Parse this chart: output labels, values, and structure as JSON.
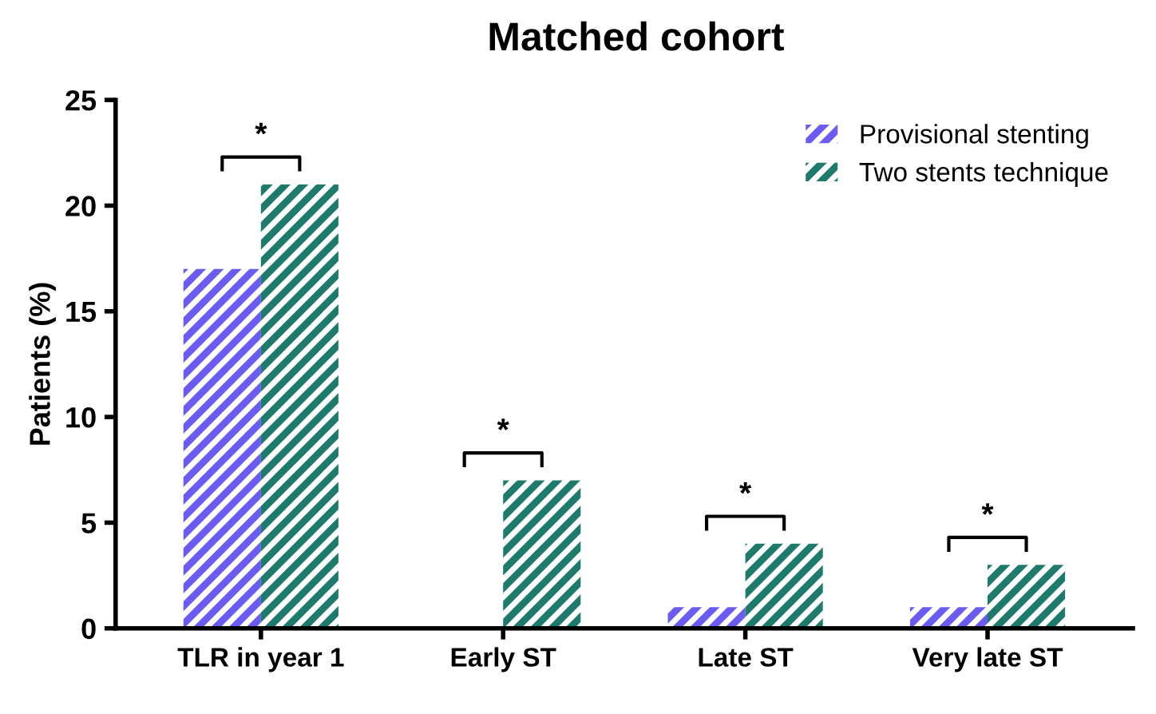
{
  "chart_data": {
    "type": "bar",
    "title": "Matched cohort",
    "ylabel": "Patients (%)",
    "categories": [
      "TLR in year 1",
      "Early ST",
      "Late ST",
      "Very late ST"
    ],
    "series": [
      {
        "name": "Provisional stenting",
        "color": "#6a5cf2",
        "values": [
          17,
          0,
          1,
          1
        ]
      },
      {
        "name": "Two stents technique",
        "color": "#1e7b6b",
        "values": [
          21,
          7,
          4,
          3
        ]
      }
    ],
    "ylim": [
      0,
      25
    ],
    "yticks": [
      0,
      5,
      10,
      15,
      20,
      25
    ],
    "grid": false,
    "legend": "top right",
    "annotations": [
      "*",
      "*",
      "*",
      "*"
    ]
  }
}
